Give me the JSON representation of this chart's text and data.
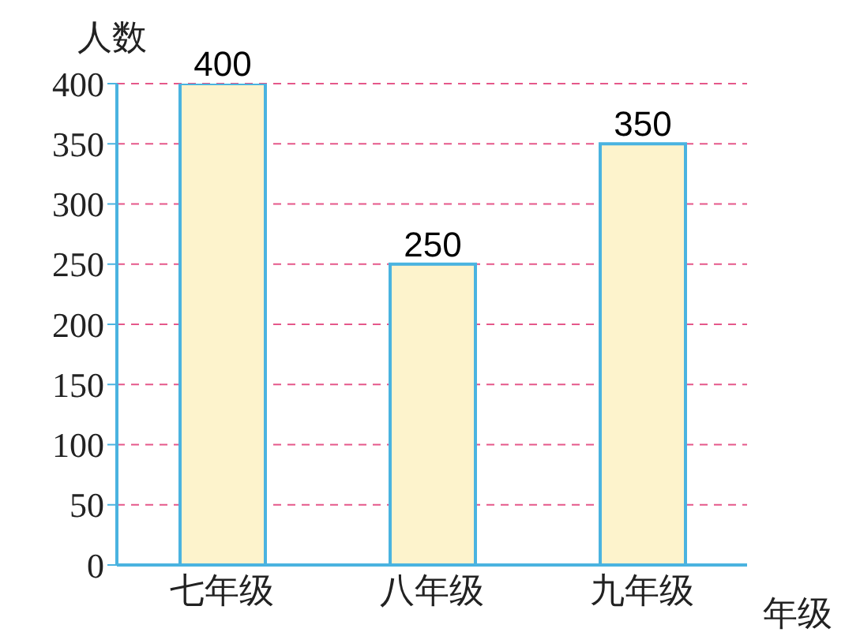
{
  "chart_data": {
    "type": "bar",
    "ylabel": "人数",
    "xlabel": "年级",
    "categories": [
      "七年级",
      "八年级",
      "九年级"
    ],
    "values": [
      400,
      250,
      350
    ],
    "color": "#fdf3cc",
    "ylim": [
      0,
      400
    ],
    "yticks": [
      0,
      50,
      100,
      150,
      200,
      250,
      300,
      350,
      400
    ],
    "grid": "y",
    "data_labels": true
  }
}
